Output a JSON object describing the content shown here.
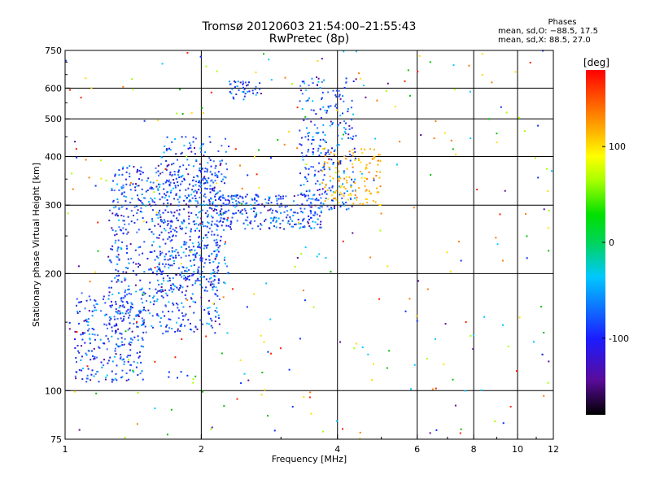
{
  "header": {
    "title_line1": "Tromsø 20120603 21:54:00–21:55:43",
    "title_line2": "RwPretec (8p)"
  },
  "phases": {
    "title": "Phases",
    "line_o": "mean, sd,O: −88.5, 17.5",
    "line_x": "mean, sd,X:  88.5, 27.0"
  },
  "chart_data": {
    "type": "scatter",
    "xlabel": "Frequency [MHz]",
    "ylabel": "Stationary phase Virtual Height [km]",
    "x_scale": "log",
    "y_scale": "log",
    "xlim": [
      1,
      12
    ],
    "ylim": [
      75,
      750
    ],
    "x_ticks": [
      1,
      2,
      4,
      6,
      8,
      10,
      12
    ],
    "y_ticks": [
      75,
      100,
      200,
      300,
      400,
      500,
      600,
      750
    ],
    "grid_x": [
      2,
      4,
      6,
      8,
      10
    ],
    "grid_y": [
      100,
      200,
      300,
      400,
      500,
      600
    ],
    "colorbar": {
      "label": "[deg]",
      "range": [
        -180,
        180
      ],
      "ticks": [
        -100,
        0,
        100
      ],
      "colors": [
        "#000000",
        "#5a0b9a",
        "#1c1cff",
        "#00c8ff",
        "#00d45a",
        "#00e000",
        "#a8ff00",
        "#ffff00",
        "#ffaa00",
        "#ff5000",
        "#ff0000"
      ]
    },
    "clusters": [
      {
        "name": "o-trace-lower",
        "color": "#1f40ff",
        "x": [
          1.05,
          1.5
        ],
        "y": [
          105,
          180
        ],
        "n": 260
      },
      {
        "name": "o-trace-mid",
        "color": "#1f50ff",
        "x": [
          1.25,
          2.2
        ],
        "y": [
          140,
          380
        ],
        "n": 720
      },
      {
        "name": "o-trace-spread",
        "color": "#1a3cff",
        "x": [
          1.6,
          2.3
        ],
        "y": [
          180,
          450
        ],
        "n": 380
      },
      {
        "name": "o-trace-knee",
        "color": "#2060ff",
        "x": [
          2.2,
          3.7
        ],
        "y": [
          260,
          320
        ],
        "n": 260
      },
      {
        "name": "o-trace-rise",
        "color": "#1f50ff",
        "x": [
          3.3,
          4.4
        ],
        "y": [
          290,
          640
        ],
        "n": 260
      },
      {
        "name": "x-trace",
        "color": "#ffb400",
        "x": [
          3.7,
          5.0
        ],
        "y": [
          300,
          420
        ],
        "n": 120
      },
      {
        "name": "o-top-streak",
        "color": "#2a55ff",
        "x": [
          2.3,
          2.7
        ],
        "y": [
          560,
          625
        ],
        "n": 40
      },
      {
        "name": "noise-sparse",
        "color": "mixed",
        "x": [
          1,
          12
        ],
        "y": [
          75,
          750
        ],
        "n": 320
      }
    ]
  }
}
